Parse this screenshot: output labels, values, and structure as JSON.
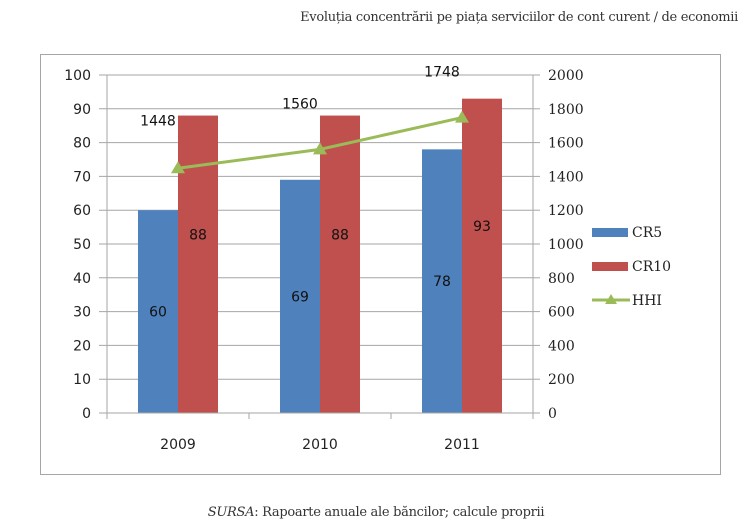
{
  "header": {
    "title": "Evoluția concentrării pe piața serviciilor de cont curent / de economii"
  },
  "footer": {
    "source_label": "SURSA",
    "source_text": ": Rapoarte anuale ale băncilor; calcule proprii"
  },
  "chart_data": {
    "type": "bar",
    "title": "Evoluția concentrării pe piața serviciilor de cont curent / de economii",
    "categories": [
      "2009",
      "2010",
      "2011"
    ],
    "series": [
      {
        "name": "CR5",
        "type": "bar",
        "axis": "left",
        "color": "#4f81bd",
        "values": [
          60,
          69,
          78
        ]
      },
      {
        "name": "CR10",
        "type": "bar",
        "axis": "left",
        "color": "#c0504d",
        "values": [
          88,
          88,
          93
        ]
      },
      {
        "name": "HHI",
        "type": "line",
        "axis": "right",
        "color": "#9bbb59",
        "marker": "triangle",
        "values": [
          1448,
          1560,
          1748
        ]
      }
    ],
    "y_left": {
      "min": 0,
      "max": 100,
      "ticks": [
        0,
        10,
        20,
        30,
        40,
        50,
        60,
        70,
        80,
        90,
        100
      ]
    },
    "y_right": {
      "min": 0,
      "max": 2000,
      "ticks": [
        0,
        200,
        400,
        600,
        800,
        1000,
        1200,
        1400,
        1600,
        1800,
        2000
      ]
    },
    "xlabel": "",
    "ylabel": "",
    "grid": true,
    "legend": "right"
  }
}
